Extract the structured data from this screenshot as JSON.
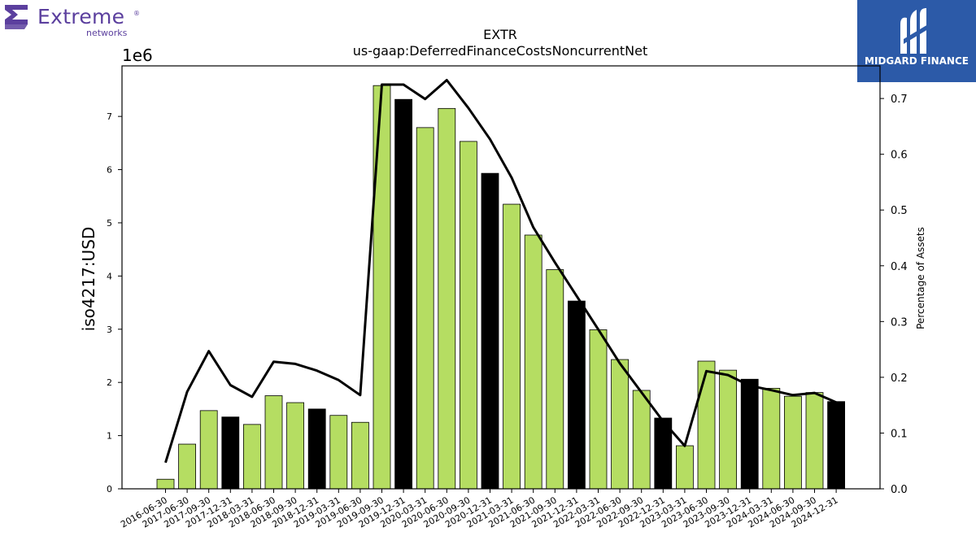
{
  "brand_left": {
    "name": "Extreme",
    "sub": "networks",
    "mark": "®",
    "color": "#5b3f9e"
  },
  "brand_right": {
    "name": "MIDGARD FINANCE",
    "color": "#2c5aa8"
  },
  "chart_data": {
    "type": "bar",
    "title": "EXTR",
    "subtitle": "us-gaap:DeferredFinanceCostsNoncurrentNet",
    "ylabel": "iso4217:USD",
    "y_offset_label": "1e6",
    "y2label": "Percentage of Assets",
    "ylim": [
      0,
      7.95
    ],
    "y2lim": [
      0,
      0.7585
    ],
    "y_ticks": [
      "0",
      "1",
      "2",
      "3",
      "4",
      "5",
      "6",
      "7"
    ],
    "y2_ticks": [
      "0.0",
      "0.1",
      "0.2",
      "0.3",
      "0.4",
      "0.5",
      "0.6",
      "0.7"
    ],
    "bar_colors": {
      "quarter": "#b5dd62",
      "year_end": "#000000"
    },
    "line_color": "#000000",
    "categories": [
      "2016-06-30",
      "2017-06-30",
      "2017-09-30",
      "2017-12-31",
      "2018-03-31",
      "2018-06-30",
      "2018-09-30",
      "2018-12-31",
      "2019-03-31",
      "2019-06-30",
      "2019-09-30",
      "2019-12-31",
      "2020-03-31",
      "2020-06-30",
      "2020-09-30",
      "2020-12-31",
      "2021-03-31",
      "2021-06-30",
      "2021-09-30",
      "2021-12-31",
      "2022-03-31",
      "2022-06-30",
      "2022-09-30",
      "2022-12-31",
      "2023-03-31",
      "2023-06-30",
      "2023-09-30",
      "2023-12-31",
      "2024-03-31",
      "2024-06-30",
      "2024-09-30",
      "2024-12-31"
    ],
    "series": [
      {
        "values": [
          0.18,
          0.84,
          1.47,
          1.35,
          1.21,
          1.75,
          1.62,
          1.5,
          1.38,
          1.25,
          7.58,
          7.32,
          6.79,
          7.15,
          6.53,
          5.93,
          5.35,
          4.77,
          4.12,
          3.53,
          2.99,
          2.43,
          1.85,
          1.33,
          0.81,
          2.4,
          2.23,
          2.06,
          1.89,
          1.74,
          1.81,
          1.64
        ]
      },
      {
        "axis": "right",
        "type": "line",
        "values": [
          0.047,
          0.174,
          0.247,
          0.186,
          0.165,
          0.228,
          0.224,
          0.212,
          0.195,
          0.168,
          0.725,
          0.725,
          0.699,
          0.733,
          0.683,
          0.627,
          0.558,
          0.469,
          0.406,
          0.346,
          0.286,
          0.225,
          0.173,
          0.121,
          0.077,
          0.211,
          0.204,
          0.185,
          0.177,
          0.168,
          0.172,
          0.155
        ]
      }
    ]
  }
}
